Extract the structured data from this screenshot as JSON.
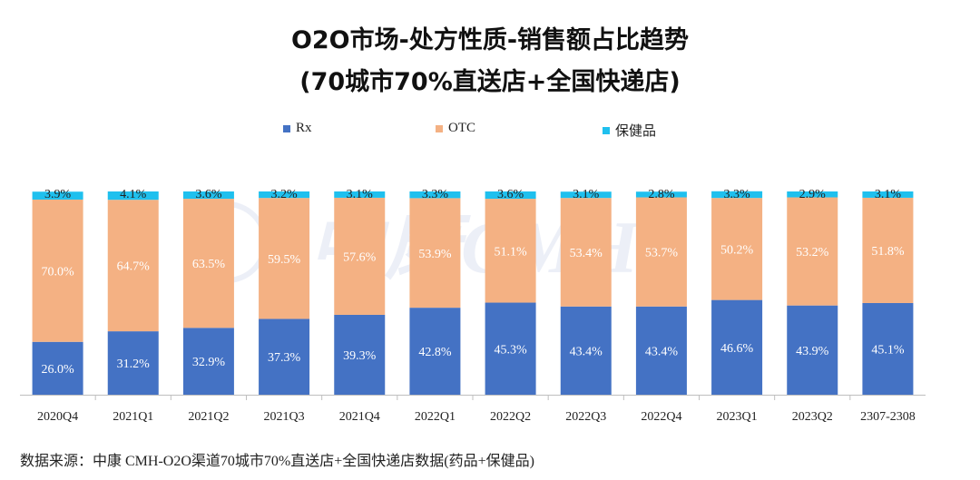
{
  "title_line1": "O2O市场-处方性质-销售额占比趋势",
  "title_line2": "(70城市70%直送店+全国快递店)",
  "source_note": "数据来源：中康 CMH-O2O渠道70城市70%直送店+全国快递店数据(药品+保健品)",
  "watermark": "中康CMH",
  "colors": {
    "rx": "#4472C4",
    "otc": "#F4B183",
    "health": "#1FC0EE",
    "axis": "#BFBFBF"
  },
  "chart_data": {
    "type": "bar",
    "stacked": true,
    "percent": true,
    "categories": [
      "2020Q4",
      "2021Q1",
      "2021Q2",
      "2021Q3",
      "2021Q4",
      "2022Q1",
      "2022Q2",
      "2022Q3",
      "2022Q4",
      "2023Q1",
      "2023Q2",
      "2307-2308"
    ],
    "series": [
      {
        "name": "Rx",
        "values": [
          26.0,
          31.2,
          32.9,
          37.3,
          39.3,
          42.8,
          45.3,
          43.4,
          43.4,
          46.6,
          43.9,
          45.1
        ],
        "labels": [
          "26.0%",
          "31.2%",
          "32.9%",
          "37.3%",
          "39.3%",
          "42.8%",
          "45.3%",
          "43.4%",
          "43.4%",
          "46.6%",
          "43.9%",
          "45.1%"
        ]
      },
      {
        "name": "OTC",
        "values": [
          70.0,
          64.7,
          63.5,
          59.5,
          57.6,
          53.9,
          51.1,
          53.4,
          53.7,
          50.2,
          53.2,
          51.8
        ],
        "labels": [
          "70.0%",
          "64.7%",
          "63.5%",
          "59.5%",
          "57.6%",
          "53.9%",
          "51.1%",
          "53.4%",
          "53.7%",
          "50.2%",
          "53.2%",
          "51.8%"
        ]
      },
      {
        "name": "保健品",
        "values": [
          3.9,
          4.1,
          3.6,
          3.2,
          3.1,
          3.3,
          3.6,
          3.1,
          2.8,
          3.3,
          2.9,
          3.1
        ],
        "labels": [
          "3.9%",
          "4.1%",
          "3.6%",
          "3.2%",
          "3.1%",
          "3.3%",
          "3.6%",
          "3.1%",
          "2.8%",
          "3.3%",
          "2.9%",
          "3.1%"
        ]
      }
    ],
    "ylim": [
      0,
      100
    ],
    "legend_position": "top",
    "grid": false
  }
}
